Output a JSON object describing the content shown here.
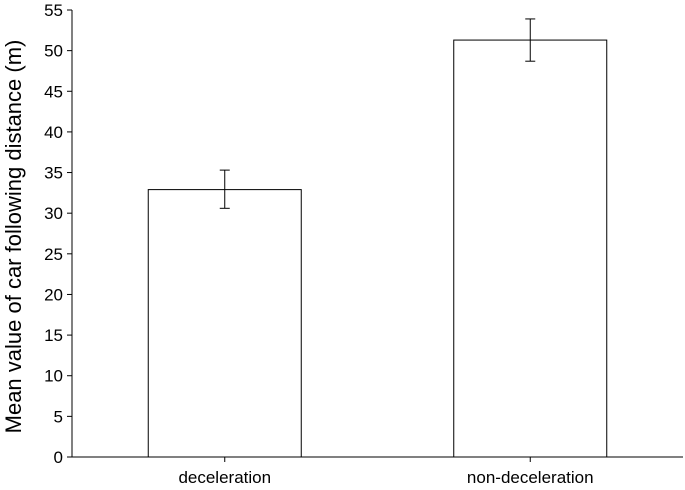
{
  "chart_data": {
    "type": "bar",
    "title": "",
    "xlabel": "",
    "ylabel": "Mean value of car following distance (m)",
    "categories": [
      "deceleration",
      "non-deceleration"
    ],
    "values": [
      32.9,
      51.3
    ],
    "error": [
      {
        "low": 30.6,
        "high": 35.3
      },
      {
        "low": 48.7,
        "high": 53.9
      }
    ],
    "ylim": [
      0,
      55
    ],
    "yticks": [
      0,
      5,
      10,
      15,
      20,
      25,
      30,
      35,
      40,
      45,
      50,
      55
    ],
    "grid": false,
    "legend": "none",
    "colors": {
      "bar_fill": "#ffffff",
      "bar_stroke": "#000000",
      "axis": "#000000"
    }
  }
}
